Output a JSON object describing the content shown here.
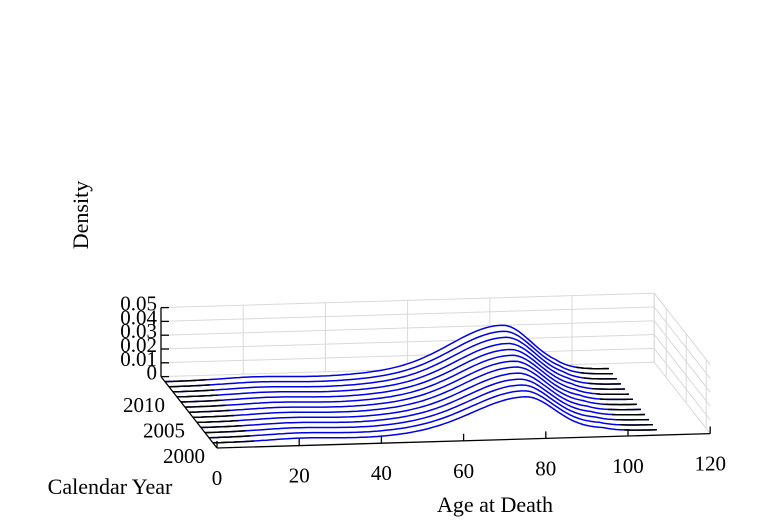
{
  "chart_data": {
    "type": "3d-line-waterfall",
    "xlabel": "Age at Death",
    "ylabel": "Density",
    "zlabel": "Calendar Year",
    "x_ticks": [
      "0",
      "20",
      "40",
      "60",
      "80",
      "100",
      "120"
    ],
    "y_ticks": [
      "0",
      "0.01",
      "0.02",
      "0.03",
      "0.04",
      "0.05"
    ],
    "z_ticks": [
      "2000",
      "2005",
      "2010"
    ],
    "xlim": [
      0,
      120
    ],
    "ylim": [
      0,
      0.05
    ],
    "zlim": [
      1999,
      2013
    ],
    "grid": true,
    "curve_color": "#0000e6",
    "low_density_color": "#000000",
    "series": [
      {
        "year": 2000,
        "peak_age": 76.0,
        "peak_density": 0.0246
      },
      {
        "year": 2001,
        "peak_age": 76.5,
        "peak_density": 0.0252
      },
      {
        "year": 2002,
        "peak_age": 77.0,
        "peak_density": 0.0257
      },
      {
        "year": 2003,
        "peak_age": 77.5,
        "peak_density": 0.0262
      },
      {
        "year": 2004,
        "peak_age": 78.0,
        "peak_density": 0.0268
      },
      {
        "year": 2005,
        "peak_age": 78.5,
        "peak_density": 0.0275
      },
      {
        "year": 2006,
        "peak_age": 79.0,
        "peak_density": 0.028
      },
      {
        "year": 2007,
        "peak_age": 79.5,
        "peak_density": 0.0285
      },
      {
        "year": 2008,
        "peak_age": 80.0,
        "peak_density": 0.029
      },
      {
        "year": 2009,
        "peak_age": 80.5,
        "peak_density": 0.0296
      },
      {
        "year": 2010,
        "peak_age": 81.0,
        "peak_density": 0.0303
      },
      {
        "year": 2011,
        "peak_age": 81.5,
        "peak_density": 0.0309
      },
      {
        "year": 2012,
        "peak_age": 82.0,
        "peak_density": 0.0316
      }
    ]
  }
}
